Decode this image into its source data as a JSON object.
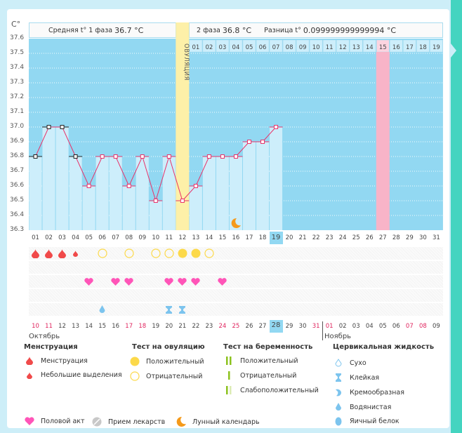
{
  "header": {
    "unit": "C°",
    "phase1_label": "Средняя t° 1 фаза",
    "phase1_value": "36.7 °C",
    "phase2_label": "2 фаза",
    "phase2_value": "36.8 °C",
    "diff_label": "Разница t°",
    "diff_value": "0.099999999999994 °C",
    "ovulation_label": "ОВУЛЯЦИЯ"
  },
  "colors": {
    "chart_bg": "#92d8f2",
    "bar_fill": "#cdeefb",
    "ovulation_col": "#fdf0a8",
    "expected_period_col": "#f8b4c8",
    "line": "#e8336a",
    "today": "#92d8f2",
    "weekend_text": "#e0245e"
  },
  "chart_data": {
    "type": "line",
    "title": "Базальная температура",
    "ylabel": "C°",
    "ylim": [
      36.3,
      37.6
    ],
    "yticks": [
      "37.6",
      "37.5",
      "37.4",
      "37.3",
      "37.2",
      "37.1",
      "37.0",
      "36.9",
      "36.8",
      "36.7",
      "36.6",
      "36.5",
      "36.4",
      "36.3"
    ],
    "grid": true,
    "cycle_days": [
      "01",
      "02",
      "03",
      "04",
      "05",
      "06",
      "07",
      "08",
      "09",
      "10",
      "11",
      "12",
      "13",
      "14",
      "15",
      "16",
      "17",
      "18",
      "19",
      "20",
      "21",
      "22",
      "23",
      "24",
      "25",
      "26",
      "27",
      "28",
      "29",
      "30",
      "31"
    ],
    "after_ovulation_days": [
      "01",
      "02",
      "03",
      "04",
      "05",
      "06",
      "07",
      "08",
      "09",
      "10",
      "11",
      "12",
      "13",
      "14",
      "15",
      "16",
      "17",
      "18",
      "19"
    ],
    "temperatures": [
      36.8,
      37.0,
      37.0,
      36.8,
      36.6,
      36.8,
      36.8,
      36.6,
      36.8,
      36.5,
      36.8,
      36.5,
      36.6,
      36.8,
      36.8,
      36.8,
      36.9,
      36.9,
      37.0
    ],
    "black_marker_days": [
      1,
      2,
      3,
      4
    ],
    "ovulation_day": 12,
    "expected_period_day": 27,
    "today_day": 19,
    "moon_day": 16
  },
  "calendar": {
    "dates": [
      "10",
      "11",
      "12",
      "13",
      "14",
      "15",
      "16",
      "17",
      "18",
      "19",
      "20",
      "21",
      "22",
      "23",
      "24",
      "25",
      "26",
      "27",
      "28",
      "29",
      "30",
      "31",
      "01",
      "02",
      "03",
      "04",
      "05",
      "06",
      "07",
      "08",
      "09"
    ],
    "weekend_indices": [
      0,
      1,
      7,
      8,
      14,
      15,
      21,
      22,
      28,
      29
    ],
    "today_index": 18,
    "month1": "Октябрь",
    "month2": "Ноябрь",
    "month2_start_index": 22
  },
  "symbols": {
    "menstruation": {
      "1": "full",
      "2": "full",
      "3": "full",
      "4": "small"
    },
    "ovulation_test": {
      "6": "neg",
      "8": "neg",
      "10": "neg",
      "11": "neg",
      "12": "pos",
      "13": "pos",
      "14": "neg"
    },
    "intercourse": [
      5,
      7,
      8,
      11,
      12,
      13,
      15
    ],
    "cervical": {
      "6": "watery",
      "11": "sticky",
      "12": "sticky"
    }
  },
  "legend": {
    "menstruation": {
      "title": "Менструация",
      "items": [
        "Менструация",
        "Небольшие выделения"
      ]
    },
    "ovulation_test": {
      "title": "Тест на овуляцию",
      "items": [
        "Положительный",
        "Отрицательный"
      ]
    },
    "pregnancy_test": {
      "title": "Тест на беременность",
      "items": [
        "Положительный",
        "Отрицательный",
        "Слабоположительный"
      ]
    },
    "cervical": {
      "title": "Цервикальная жидкость",
      "items": [
        "Сухо",
        "Клейкая",
        "Кремообразная",
        "Водянистая",
        "Яичный белок"
      ]
    },
    "other": [
      "Половой акт",
      "Прием лекарств",
      "Лунный календарь"
    ]
  }
}
